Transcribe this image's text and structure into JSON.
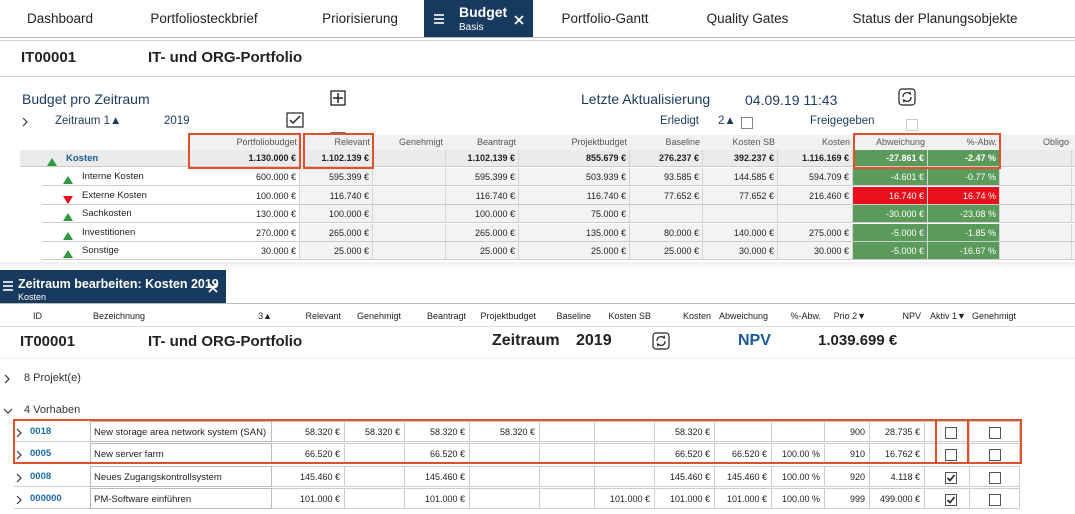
{
  "nav": {
    "tabs": [
      "Dashboard",
      "Portfoliosteckbrief",
      "Priorisierung",
      "Budget",
      "Portfolio-Gantt",
      "Quality Gates",
      "Status der Planungsobjekte"
    ],
    "active_tab": 3,
    "active_subtitle": "Basis"
  },
  "header": {
    "id": "IT00001",
    "name": "IT- und ORG-Portfolio"
  },
  "budget": {
    "title": "Budget pro Zeitraum",
    "last_update_label": "Letzte Aktualisierung",
    "last_update": "04.09.19 11:43",
    "period_label": "Zeitraum 1▲",
    "period": "2019",
    "done_label": "Erledigt",
    "done_sort": "2▲",
    "released_label": "Freigegeben",
    "columns": [
      "Portfoliobudget",
      "Relevant",
      "Genehmigt",
      "Beantragt",
      "Projektbudget",
      "Baseline",
      "Kosten SB",
      "Kosten",
      "Abweichung",
      "%-Abw.",
      "Obligo"
    ],
    "rows": [
      {
        "label": "Kosten",
        "trend": "up",
        "color": "#5a9a5a",
        "cells": [
          "1.130.000 €",
          "1.102.139 €",
          null,
          "1.102.139 €",
          "855.679 €",
          "276.237 €",
          "392.237 €",
          "1.116.169 €",
          "-27.861 €",
          "-2.47 %",
          null
        ]
      },
      {
        "label": "Interne Kosten",
        "trend": "up",
        "color": "#5a9a5a",
        "cells": [
          "600.000 €",
          "595.399 €",
          null,
          "595.399 €",
          "503.939 €",
          "93.585 €",
          "144.585 €",
          "594.709 €",
          "-4.601 €",
          "-0.77 %",
          null
        ]
      },
      {
        "label": "Externe Kosten",
        "trend": "down",
        "color": "#e8101a",
        "cells": [
          "100.000 €",
          "116.740 €",
          null,
          "116.740 €",
          "116.740 €",
          "77.652 €",
          "77.652 €",
          "216.460 €",
          "16.740 €",
          "16.74 %",
          null
        ]
      },
      {
        "label": "Sachkosten",
        "trend": "up",
        "color": "#5a9a5a",
        "cells": [
          "130.000 €",
          "100.000 €",
          null,
          "100.000 €",
          "75.000 €",
          null,
          null,
          null,
          "-30.000 €",
          "-23.08 %",
          null
        ]
      },
      {
        "label": "Investitionen",
        "trend": "up",
        "color": "#5a9a5a",
        "cells": [
          "270.000 €",
          "265.000 €",
          null,
          "265.000 €",
          "135.000 €",
          "80.000 €",
          "140.000 €",
          "275.000 €",
          "-5.000 €",
          "-1.85 %",
          null
        ]
      },
      {
        "label": "Sonstige",
        "trend": "up",
        "color": "#5a9a5a",
        "cells": [
          "30.000 €",
          "25.000 €",
          null,
          "25.000 €",
          "25.000 €",
          "25.000 €",
          "30.000 €",
          "30.000 €",
          "-5.000 €",
          "-16.67 %",
          null
        ]
      }
    ]
  },
  "editor": {
    "title": "Zeitraum bearbeiten: Kosten 2019",
    "subtitle": "Kosten",
    "columns": [
      "ID",
      "Bezeichnung",
      "3▲",
      "Relevant",
      "Genehmigt",
      "Beantragt",
      "Projektbudget",
      "Baseline",
      "Kosten SB",
      "Kosten",
      "Abweichung",
      "%-Abw.",
      "Prio 2▼",
      "NPV",
      "Aktiv 1▼",
      "Genehmigt"
    ],
    "summary": {
      "id": "IT00001",
      "name": "IT- und ORG-Portfolio",
      "period_label": "Zeitraum",
      "period": "2019",
      "npv_label": "NPV",
      "npv": "1.039.699 €"
    },
    "groups": [
      "8 Projekt(e)",
      "4 Vorhaben"
    ],
    "rows": [
      {
        "id": "0018",
        "name": "New storage area network system (SAN)",
        "cells": [
          "58.320 €",
          "58.320 €",
          "58.320 €",
          "58.320 €",
          null,
          null,
          "58.320 €",
          null,
          null,
          "900",
          "28.735 €"
        ],
        "aktiv": false,
        "genehmigt": false
      },
      {
        "id": "0005",
        "name": "New server farm",
        "cells": [
          "66.520 €",
          null,
          "66.520 €",
          null,
          null,
          null,
          "66.520 €",
          "66.520 €",
          "100.00 %",
          "910",
          "16.762 €"
        ],
        "aktiv": false,
        "genehmigt": false
      },
      {
        "id": "0008",
        "name": "Neues Zugangskontrollsystem",
        "cells": [
          "145.460 €",
          null,
          "145.460 €",
          null,
          null,
          null,
          "145.460 €",
          "145.460 €",
          "100.00 %",
          "920",
          "4.118 €"
        ],
        "aktiv": true,
        "genehmigt": false
      },
      {
        "id": "000000",
        "name": "PM-Software einführen",
        "cells": [
          "101.000 €",
          null,
          "101.000 €",
          null,
          null,
          "101.000 €",
          "101.000 €",
          "101.000 €",
          "100.00 %",
          "999",
          "499.000 €"
        ],
        "aktiv": true,
        "genehmigt": false
      }
    ]
  }
}
